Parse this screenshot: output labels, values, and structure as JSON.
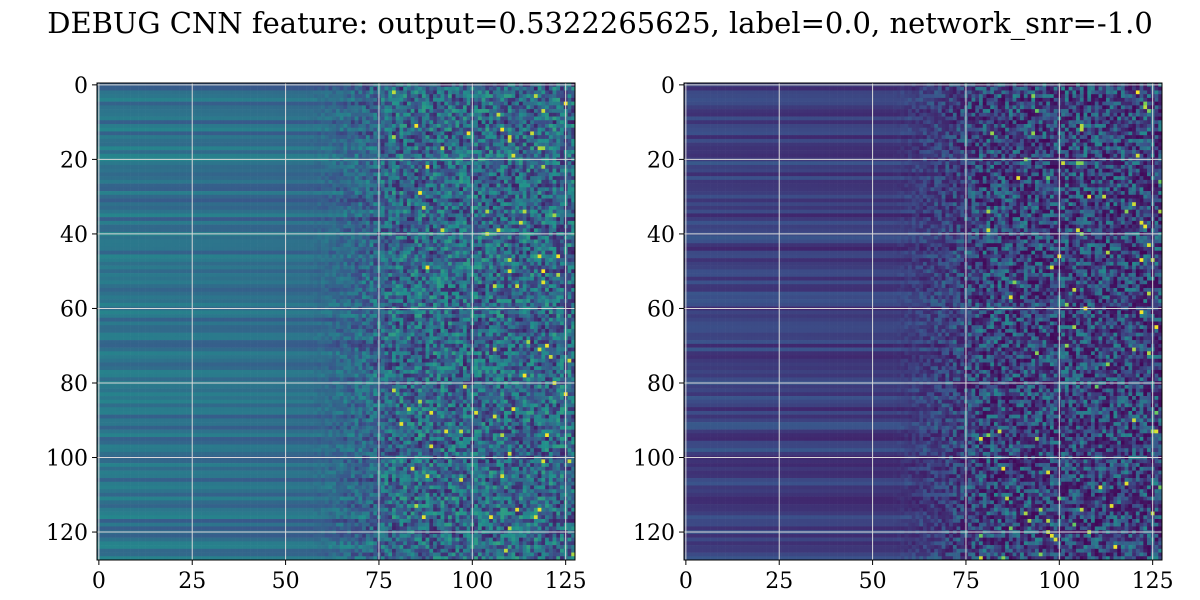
{
  "title": "DEBUG CNN feature: output=0.5322265625, label=0.0, network_snr=-1.0",
  "colormap": [
    "#440154",
    "#3b528b",
    "#21918c",
    "#5ec962",
    "#fde725"
  ],
  "grid_color": "#d9d9d9",
  "chart_data": [
    {
      "type": "heatmap",
      "title": "",
      "xlabel": "",
      "ylabel": "",
      "xlim": [
        -0.5,
        127.5
      ],
      "ylim": [
        127.5,
        -0.5
      ],
      "xticks": [
        0,
        25,
        50,
        75,
        100,
        125
      ],
      "yticks": [
        0,
        20,
        40,
        60,
        80,
        100,
        120
      ],
      "grid": true,
      "shape": [
        128,
        128
      ],
      "value_range": [
        0.0,
        1.0
      ],
      "description": "column-wise: columns 0–60 smooth horizontal bands ~0.3–0.45, columns 75–127 noisy speckle ~0.1–0.6 with occasional bright outliers near 1.0"
    },
    {
      "type": "heatmap",
      "title": "",
      "xlabel": "",
      "ylabel": "",
      "xlim": [
        -0.5,
        127.5
      ],
      "ylim": [
        127.5,
        -0.5
      ],
      "xticks": [
        0,
        25,
        50,
        75,
        100,
        125
      ],
      "yticks": [
        0,
        20,
        40,
        60,
        80,
        100,
        120
      ],
      "grid": true,
      "shape": [
        128,
        128
      ],
      "value_range": [
        0.0,
        1.0
      ],
      "description": "mostly low values ~0.05–0.25 with horizontal banding on left, noisy speckle columns 75–127 with sparse bright outliers"
    }
  ]
}
